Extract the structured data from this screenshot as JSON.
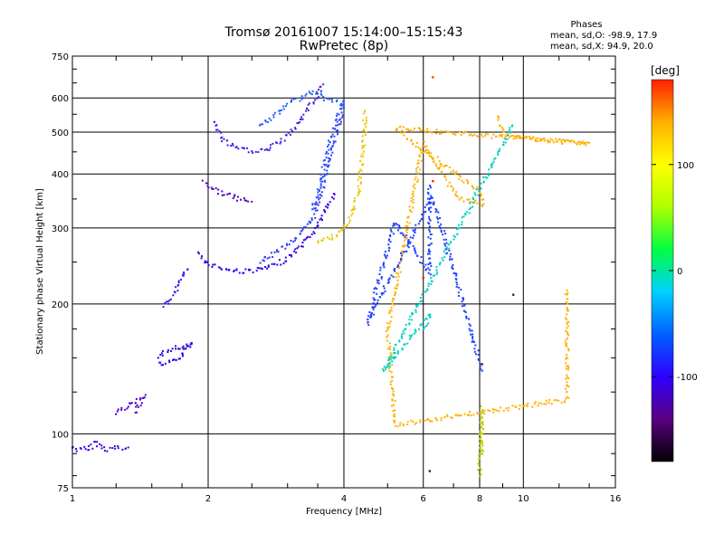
{
  "chart_data": {
    "type": "scatter",
    "title": "Tromsø 20161007 15:14:00–15:15:43",
    "subtitle": "RwPretec (8p)",
    "xlabel": "Frequency [MHz]",
    "ylabel": "Stationary phase Virtual Height [km]",
    "x_scale": "log",
    "y_scale": "log",
    "xlim": [
      1,
      16
    ],
    "ylim": [
      75,
      750
    ],
    "xticks": [
      1,
      2,
      4,
      6,
      8,
      10,
      16
    ],
    "yticks": [
      75,
      100,
      200,
      300,
      400,
      500,
      600,
      750
    ],
    "grid": true,
    "phase_header": "Phases",
    "phase_stats": [
      "mean, sd,O: -98.9, 17.9",
      "mean, sd,X: 94.9, 20.0"
    ],
    "colorbar": {
      "label": "[deg]",
      "range": [
        -180,
        180
      ],
      "ticks": [
        -100,
        0,
        100
      ],
      "colors": [
        "#000000",
        "#5a0080",
        "#3000ff",
        "#0060ff",
        "#00d0ff",
        "#00ff40",
        "#b0ff00",
        "#ffff00",
        "#ffb000",
        "#ff2000"
      ]
    },
    "series": [
      {
        "color": "#4000e0",
        "points": [
          [
            1.0,
            93
          ],
          [
            1.03,
            92
          ],
          [
            1.05,
            93
          ],
          [
            1.08,
            91
          ],
          [
            1.12,
            96
          ],
          [
            1.15,
            94
          ],
          [
            1.2,
            92
          ],
          [
            1.25,
            93
          ],
          [
            1.3,
            92
          ],
          [
            1.33,
            93
          ]
        ]
      },
      {
        "color": "#5000d0",
        "points": [
          [
            1.25,
            112
          ],
          [
            1.3,
            115
          ],
          [
            1.35,
            117
          ],
          [
            1.4,
            120
          ],
          [
            1.45,
            123
          ],
          [
            1.38,
            112
          ]
        ]
      },
      {
        "color": "#3000e0",
        "points": [
          [
            1.55,
            145
          ],
          [
            1.6,
            144
          ],
          [
            1.65,
            146
          ],
          [
            1.7,
            148
          ],
          [
            1.75,
            152
          ],
          [
            1.8,
            158
          ],
          [
            1.85,
            163
          ],
          [
            1.6,
            155
          ],
          [
            1.55,
            150
          ]
        ]
      },
      {
        "color": "#3020f0",
        "points": [
          [
            1.6,
            197
          ],
          [
            1.65,
            205
          ],
          [
            1.7,
            215
          ],
          [
            1.75,
            230
          ],
          [
            1.8,
            240
          ]
        ]
      },
      {
        "color": "#3000e8",
        "points": [
          [
            1.9,
            262
          ],
          [
            2.0,
            248
          ],
          [
            2.2,
            240
          ],
          [
            2.4,
            238
          ],
          [
            2.6,
            240
          ],
          [
            2.8,
            245
          ],
          [
            3.0,
            255
          ],
          [
            3.2,
            270
          ],
          [
            3.4,
            290
          ],
          [
            3.6,
            320
          ],
          [
            3.8,
            360
          ]
        ]
      },
      {
        "color": "#5500c0",
        "points": [
          [
            1.95,
            385
          ],
          [
            2.05,
            370
          ],
          [
            2.2,
            358
          ],
          [
            2.35,
            350
          ],
          [
            2.5,
            345
          ]
        ]
      },
      {
        "color": "#3040f0",
        "points": [
          [
            2.6,
            250
          ],
          [
            2.8,
            262
          ],
          [
            3.0,
            275
          ],
          [
            3.2,
            290
          ],
          [
            3.4,
            310
          ],
          [
            3.5,
            340
          ],
          [
            3.6,
            380
          ],
          [
            3.7,
            420
          ],
          [
            3.8,
            470
          ],
          [
            3.9,
            520
          ],
          [
            4.0,
            570
          ]
        ]
      },
      {
        "color": "#3050ff",
        "points": [
          [
            3.4,
            330
          ],
          [
            3.5,
            360
          ],
          [
            3.6,
            410
          ],
          [
            3.7,
            460
          ],
          [
            3.8,
            510
          ],
          [
            3.9,
            555
          ],
          [
            4.0,
            590
          ]
        ]
      },
      {
        "color": "#e8c800",
        "points": [
          [
            3.5,
            280
          ],
          [
            3.7,
            283
          ],
          [
            3.9,
            292
          ],
          [
            4.05,
            305
          ],
          [
            4.2,
            330
          ],
          [
            4.3,
            360
          ],
          [
            4.35,
            400
          ],
          [
            4.4,
            450
          ],
          [
            4.45,
            500
          ],
          [
            4.45,
            560
          ]
        ]
      },
      {
        "color": "#4020e8",
        "points": [
          [
            2.05,
            530
          ],
          [
            2.15,
            480
          ],
          [
            2.3,
            460
          ],
          [
            2.5,
            452
          ],
          [
            2.7,
            455
          ],
          [
            2.9,
            475
          ],
          [
            3.1,
            510
          ],
          [
            3.3,
            560
          ],
          [
            3.5,
            610
          ],
          [
            3.6,
            645
          ]
        ]
      },
      {
        "color": "#2060ff",
        "points": [
          [
            2.6,
            520
          ],
          [
            2.8,
            540
          ],
          [
            3.0,
            580
          ],
          [
            3.2,
            600
          ],
          [
            3.4,
            620
          ],
          [
            3.6,
            600
          ],
          [
            3.8,
            590
          ],
          [
            4.0,
            580
          ]
        ]
      },
      {
        "color": "#ff4000",
        "points": [
          [
            6.3,
            670
          ]
        ]
      },
      {
        "color": "#ffb000",
        "points": [
          [
            8.8,
            550
          ],
          [
            9.0,
            490
          ],
          [
            14.0,
            470
          ],
          [
            5.2,
            510
          ],
          [
            8.1,
            360
          ],
          [
            8.1,
            340
          ],
          [
            7.2,
            350
          ],
          [
            6.0,
            470
          ],
          [
            5.0,
            175
          ],
          [
            5.2,
            105
          ],
          [
            12.5,
            120
          ],
          [
            12.5,
            215
          ]
        ]
      },
      {
        "color": "#00d0c0",
        "points": [
          [
            9.5,
            520
          ],
          [
            4.9,
            140
          ],
          [
            6.2,
            190
          ],
          [
            6.0,
            175
          ]
        ]
      },
      {
        "color": "#2040ff",
        "points": [
          [
            6.2,
            380
          ],
          [
            6.2,
            235
          ],
          [
            5.2,
            310
          ],
          [
            4.5,
            180
          ],
          [
            6.3,
            355
          ],
          [
            8.1,
            140
          ]
        ]
      },
      {
        "color": "#303030",
        "points": [
          [
            6.2,
            82
          ],
          [
            9.5,
            210
          ],
          [
            8.1,
            145
          ]
        ]
      },
      {
        "color": "#ff2000",
        "points": [
          [
            6.0,
            230
          ],
          [
            6.3,
            385
          ]
        ]
      },
      {
        "color": "#c0d000",
        "points": [
          [
            8.1,
            90
          ],
          [
            8.1,
            115
          ],
          [
            8.0,
            80
          ]
        ]
      }
    ]
  }
}
